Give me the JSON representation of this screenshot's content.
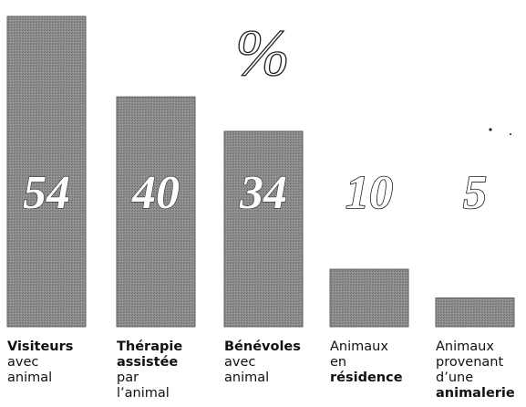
{
  "chart_data": {
    "type": "bar",
    "title": "",
    "unit_label": "%",
    "xlabel": "",
    "ylabel": "",
    "ylim": [
      0,
      54
    ],
    "grid": false,
    "legend": "none",
    "categories": [
      [
        "Visiteurs",
        "avec",
        "animal"
      ],
      [
        "Thérapie",
        "assistée",
        "par",
        "l’animal"
      ],
      [
        "Bénévoles",
        "avec",
        "animal"
      ],
      [
        "Animaux",
        "en",
        "résidence"
      ],
      [
        "Animaux",
        "provenant",
        "d’une",
        "animalerie"
      ]
    ],
    "category_bold": [
      [
        true,
        false,
        false
      ],
      [
        true,
        true,
        false,
        false
      ],
      [
        true,
        false,
        false
      ],
      [
        false,
        false,
        true
      ],
      [
        false,
        false,
        false,
        true
      ]
    ],
    "values": [
      54,
      40,
      34,
      10,
      5
    ],
    "value_labels": [
      "54",
      "40",
      "34",
      "10",
      "5"
    ],
    "bar_color": "#8c8c8c",
    "text_color": "#111111"
  }
}
